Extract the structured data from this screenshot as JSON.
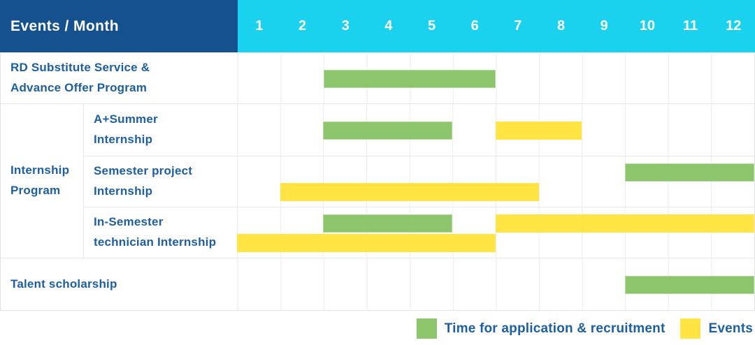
{
  "header": {
    "title": "Events / Month"
  },
  "group_cell": {
    "label": "Internship\nProgram"
  },
  "colors": {
    "header_bg": "#15518e",
    "months_header_bg": "#1ad2ee",
    "application_green": "#8cc56b",
    "event_yellow": "#ffe443",
    "label_text": "#1d5fa0",
    "header_text": "#ffffff"
  },
  "legend": {
    "items": [
      {
        "key": "application",
        "label": "Time for application & recruitment"
      },
      {
        "key": "event",
        "label": "Events"
      }
    ]
  },
  "chart_data": {
    "type": "gantt",
    "x_axis": {
      "label": "Month",
      "ticks": [
        "1",
        "2",
        "3",
        "4",
        "5",
        "6",
        "7",
        "8",
        "9",
        "10",
        "11",
        "12"
      ]
    },
    "x_range": [
      1,
      12
    ],
    "legend": {
      "application": "Time for application & recruitment",
      "event": "Events"
    },
    "rows": [
      {
        "label": "RD Substitute Service &\nAdvance Offer Program",
        "group": null,
        "bars": [
          {
            "kind": "application",
            "start": 3,
            "end": 6,
            "line": 0
          }
        ]
      },
      {
        "label": "A+Summer\nInternship",
        "group": "Internship Program",
        "bars": [
          {
            "kind": "application",
            "start": 3,
            "end": 5,
            "line": 0
          },
          {
            "kind": "event",
            "start": 7,
            "end": 8,
            "line": 0
          }
        ]
      },
      {
        "label": "Semester project\nInternship",
        "group": "Internship Program",
        "bars": [
          {
            "kind": "application",
            "start": 10,
            "end": 12,
            "line": 0
          },
          {
            "kind": "event",
            "start": 2,
            "end": 7,
            "line": 1
          }
        ]
      },
      {
        "label": "In-Semester\ntechnician Internship",
        "group": "Internship Program",
        "bars": [
          {
            "kind": "application",
            "start": 3,
            "end": 5,
            "line": 0
          },
          {
            "kind": "event",
            "start": 7,
            "end": 12,
            "line": 0
          },
          {
            "kind": "event",
            "start": 1,
            "end": 6,
            "line": 1
          }
        ]
      },
      {
        "label": "Talent scholarship",
        "group": null,
        "bars": [
          {
            "kind": "application",
            "start": 10,
            "end": 12,
            "line": 0
          }
        ]
      }
    ]
  }
}
